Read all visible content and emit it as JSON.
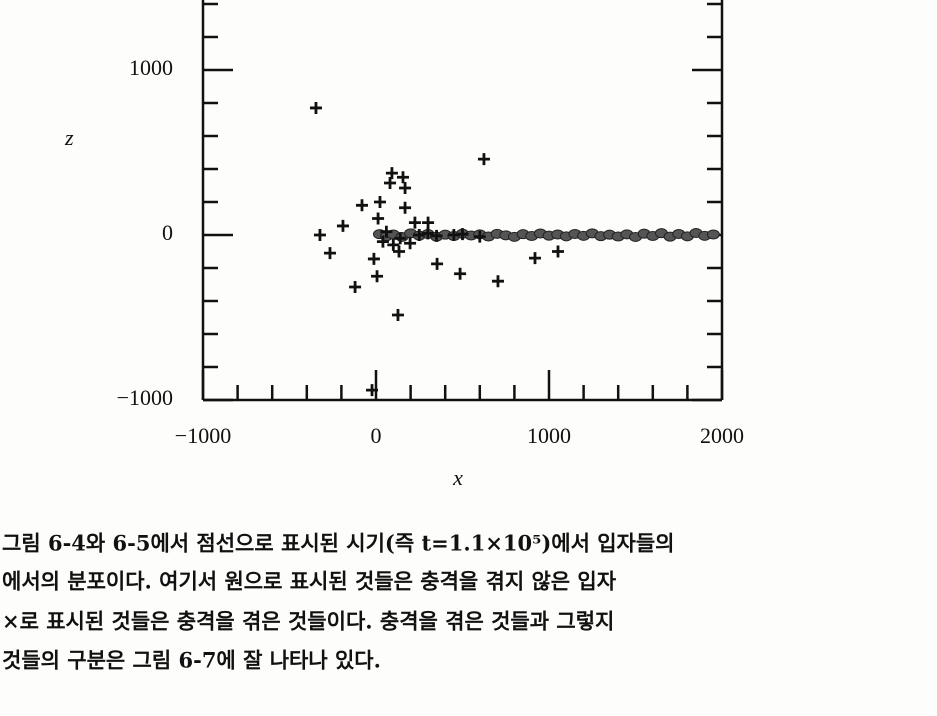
{
  "chart_data": {
    "type": "scatter",
    "xlabel": "x",
    "ylabel": "z",
    "xlim": [
      -1000,
      2000
    ],
    "ylim": [
      -1000,
      1500
    ],
    "xticks": [
      {
        "value": -1000,
        "label": "−1000"
      },
      0,
      1000,
      2000
    ],
    "yticks": [
      {
        "value": -1000,
        "label": "−1000"
      },
      0,
      1000
    ],
    "series": [
      {
        "marker": "+",
        "color": "#111111",
        "x": [
          -347,
          -324,
          -266,
          -191,
          -121,
          -81,
          -23,
          -12,
          6,
          12,
          23,
          81,
          92,
          156,
          168,
          127,
          133,
          168,
          197,
          225,
          301,
          353,
          486,
          624,
          705,
          919,
          1052,
          40,
          60,
          100,
          140,
          250,
          300,
          350,
          450,
          500,
          600
        ],
        "values": [
          770,
          0,
          -110,
          55,
          -315,
          180,
          -940,
          -145,
          -250,
          100,
          200,
          315,
          375,
          350,
          285,
          -485,
          -100,
          165,
          -50,
          75,
          75,
          -175,
          -235,
          460,
          -280,
          -140,
          -100,
          -40,
          20,
          -60,
          -20,
          0,
          10,
          -5,
          0,
          5,
          -10
        ]
      },
      {
        "marker": "o",
        "color": "#555555",
        "x": [
          20,
          60,
          100,
          150,
          200,
          250,
          300,
          350,
          400,
          450,
          500,
          550,
          600,
          650,
          700,
          750,
          800,
          850,
          900,
          950,
          1000,
          1050,
          1100,
          1150,
          1200,
          1250,
          1300,
          1350,
          1400,
          1450,
          1500,
          1550,
          1600,
          1650,
          1700,
          1750,
          1800,
          1850,
          1900,
          1950
        ],
        "values": [
          5,
          -8,
          3,
          -12,
          10,
          -4,
          6,
          -10,
          2,
          -6,
          8,
          -3,
          4,
          -9,
          7,
          -2,
          -11,
          5,
          -6,
          9,
          -4,
          3,
          -8,
          6,
          -5,
          10,
          -7,
          2,
          -9,
          4,
          -12,
          8,
          -6,
          11,
          -10,
          6,
          -8,
          12,
          -5,
          3
        ]
      }
    ]
  },
  "caption": {
    "lines": [
      "그림 6-4와 6-5에서 점선으로 표시된 시기(즉 t=1.1×10⁵)에서 입자들의",
      "에서의 분포이다. 여기서 원으로 표시된 것들은 충격을 겪지 않은 입자",
      "×로 표시된 것들은 충격을 겪은 것들이다. 충격을 겪은 것들과 그렇지",
      "것들의 구분은 그림 6-7에 잘 나타나 있다."
    ]
  }
}
